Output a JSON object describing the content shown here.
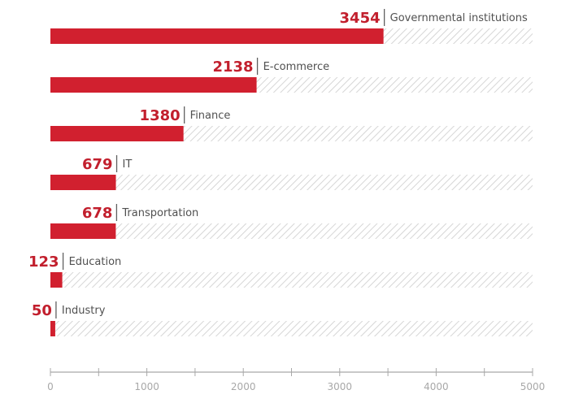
{
  "chart_data": {
    "type": "bar",
    "orientation": "horizontal",
    "title": "",
    "xlabel": "",
    "ylabel": "",
    "categories": [
      "Governmental institutions",
      "E-commerce",
      "Finance",
      "IT",
      "Transportation",
      "Education",
      "Industry"
    ],
    "values": [
      3454,
      2138,
      1380,
      679,
      678,
      123,
      50
    ],
    "xlim": [
      0,
      5000
    ],
    "major_ticks": [
      0,
      1000,
      2000,
      3000,
      4000,
      5000
    ],
    "minor_tick_step": 500,
    "grid": false,
    "legend": "none",
    "background_track": "hatched to max (5000)",
    "colors": {
      "bar": "#d1202f",
      "value_label": "#c21f2d",
      "category_label": "#505050",
      "hatch": "#d6d6d6",
      "axis": "#a8a8a8"
    }
  }
}
